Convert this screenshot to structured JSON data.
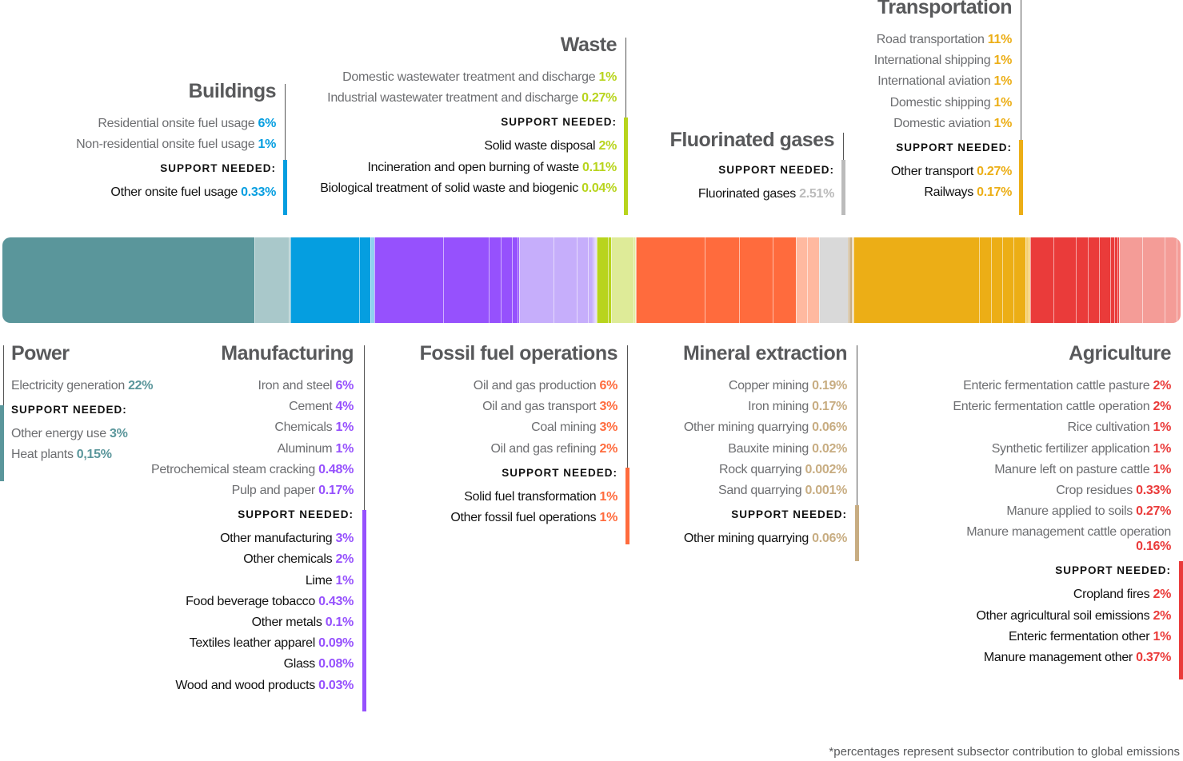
{
  "colors": {
    "power": "#5a969b",
    "power_light": "#a9c8ca",
    "buildings": "#059ee0",
    "manufacturing": "#9651fd",
    "manufacturing_light": "#c6aefb",
    "waste": "#b8d41d",
    "waste_light": "#deeb98",
    "fossil": "#ff6b3d",
    "fossil_light": "#ffb9a0",
    "fluorinated": "#bbbbbb",
    "fluorinated_light": "#d9d9d9",
    "mineral": "#c8ad82",
    "transport": "#ecae16",
    "agriculture": "#ea3b3a",
    "agriculture_light": "#f49c97"
  },
  "support_label": "SUPPORT NEEDED:",
  "footnote": "*percentages represent subsector contribution to global emissions",
  "chart_data": {
    "type": "stacked-bar",
    "title": "",
    "sectors": [
      {
        "name": "Buildings",
        "color": "#059ee0",
        "items": [
          {
            "name": "Residential onsite fuel usage",
            "value": "6%"
          },
          {
            "name": "Non-residential onsite fuel usage",
            "value": "1%"
          }
        ],
        "support": [
          {
            "name": "Other onsite fuel usage",
            "value": "0.33%"
          }
        ]
      },
      {
        "name": "Waste",
        "color": "#b8d41d",
        "items": [
          {
            "name": "Domestic wastewater treatment and discharge",
            "value": "1%"
          },
          {
            "name": "Industrial wastewater treatment and discharge",
            "value": "0.27%"
          }
        ],
        "support": [
          {
            "name": "Solid waste disposal",
            "value": "2%"
          },
          {
            "name": "Incineration and open burning of waste",
            "value": "0.11%"
          },
          {
            "name": "Biological treatment of solid waste and biogenic",
            "value": "0.04%"
          }
        ]
      },
      {
        "name": "Fluorinated gases",
        "color": "#bbbbbb",
        "items": [],
        "support": [
          {
            "name": "Fluorinated gases",
            "value": "2.51%"
          }
        ]
      },
      {
        "name": "Transportation",
        "color": "#ecae16",
        "items": [
          {
            "name": "Road transportation",
            "value": "11%"
          },
          {
            "name": "International shipping",
            "value": "1%"
          },
          {
            "name": "International aviation",
            "value": "1%"
          },
          {
            "name": "Domestic shipping",
            "value": "1%"
          },
          {
            "name": "Domestic aviation",
            "value": "1%"
          }
        ],
        "support": [
          {
            "name": "Other transport",
            "value": "0.27%"
          },
          {
            "name": "Railways",
            "value": "0.17%"
          }
        ]
      },
      {
        "name": "Power",
        "color": "#5a969b",
        "items": [
          {
            "name": "Electricity generation",
            "value": "22%"
          }
        ],
        "support": [
          {
            "name": "Other energy use",
            "value": "3%"
          },
          {
            "name": "Heat plants",
            "value": "0,15%"
          }
        ]
      },
      {
        "name": "Manufacturing",
        "color": "#9651fd",
        "items": [
          {
            "name": "Iron and steel",
            "value": "6%"
          },
          {
            "name": "Cement",
            "value": "4%"
          },
          {
            "name": "Chemicals",
            "value": "1%"
          },
          {
            "name": "Aluminum",
            "value": "1%"
          },
          {
            "name": "Petrochemical steam cracking",
            "value": "0.48%"
          },
          {
            "name": "Pulp and paper",
            "value": "0.17%"
          }
        ],
        "support": [
          {
            "name": "Other manufacturing",
            "value": "3%"
          },
          {
            "name": "Other chemicals",
            "value": "2%"
          },
          {
            "name": "Lime",
            "value": "1%"
          },
          {
            "name": "Food beverage tobacco",
            "value": "0.43%"
          },
          {
            "name": "Other metals",
            "value": "0.1%"
          },
          {
            "name": "Textiles leather apparel",
            "value": "0.09%"
          },
          {
            "name": "Glass",
            "value": "0.08%"
          },
          {
            "name": "Wood and wood products",
            "value": "0.03%"
          }
        ]
      },
      {
        "name": "Fossil fuel operations",
        "color": "#ff6b3d",
        "items": [
          {
            "name": "Oil and gas production",
            "value": "6%"
          },
          {
            "name": "Oil and gas transport",
            "value": "3%"
          },
          {
            "name": "Coal mining",
            "value": "3%"
          },
          {
            "name": "Oil and gas refining",
            "value": "2%"
          }
        ],
        "support": [
          {
            "name": "Solid fuel transformation",
            "value": "1%"
          },
          {
            "name": "Other fossil fuel operations",
            "value": "1%"
          }
        ]
      },
      {
        "name": "Mineral extraction",
        "color": "#c8ad82",
        "items": [
          {
            "name": "Copper mining",
            "value": "0.19%"
          },
          {
            "name": "Iron mining",
            "value": "0.17%"
          },
          {
            "name": "Other mining quarrying",
            "value": "0.06%"
          },
          {
            "name": "Bauxite mining",
            "value": "0.02%"
          },
          {
            "name": "Rock quarrying",
            "value": "0.002%"
          },
          {
            "name": "Sand quarrying",
            "value": "0.001%"
          }
        ],
        "support": [
          {
            "name": "Other mining quarrying",
            "value": "0.06%"
          }
        ]
      },
      {
        "name": "Agriculture",
        "color": "#ea3b3a",
        "items": [
          {
            "name": "Enteric fermentation cattle pasture",
            "value": "2%"
          },
          {
            "name": "Enteric fermentation cattle operation",
            "value": "2%"
          },
          {
            "name": "Rice cultivation",
            "value": "1%"
          },
          {
            "name": "Synthetic fertilizer application",
            "value": "1%"
          },
          {
            "name": "Manure left on pasture cattle",
            "value": "1%"
          },
          {
            "name": "Crop residues",
            "value": "0.33%"
          },
          {
            "name": "Manure applied to soils",
            "value": "0.27%"
          },
          {
            "name": "Manure management cattle operation",
            "value": "0.16%"
          }
        ],
        "support": [
          {
            "name": "Cropland fires",
            "value": "2%"
          },
          {
            "name": "Other agricultural soil emissions",
            "value": "2%"
          },
          {
            "name": "Enteric fermentation other",
            "value": "1%"
          },
          {
            "name": "Manure management other",
            "value": "0.37%"
          }
        ]
      }
    ],
    "bar_segments": [
      {
        "sector": "Power",
        "value": 22,
        "color": "#5a969b"
      },
      {
        "sector": "Power",
        "value": 3,
        "color": "#a9c8ca"
      },
      {
        "sector": "Power",
        "value": 0.15,
        "color": "#a9c8ca"
      },
      {
        "sector": "Buildings",
        "value": 6,
        "color": "#059ee0"
      },
      {
        "sector": "Buildings",
        "value": 1,
        "color": "#059ee0"
      },
      {
        "sector": "Buildings",
        "value": 0.33,
        "color": "#8fd0f0"
      },
      {
        "sector": "Manufacturing",
        "value": 6,
        "color": "#9651fd"
      },
      {
        "sector": "Manufacturing",
        "value": 4,
        "color": "#9651fd"
      },
      {
        "sector": "Manufacturing",
        "value": 1,
        "color": "#9651fd"
      },
      {
        "sector": "Manufacturing",
        "value": 1,
        "color": "#9651fd"
      },
      {
        "sector": "Manufacturing",
        "value": 0.48,
        "color": "#9651fd"
      },
      {
        "sector": "Manufacturing",
        "value": 0.17,
        "color": "#9651fd"
      },
      {
        "sector": "Manufacturing",
        "value": 3,
        "color": "#c6aefb"
      },
      {
        "sector": "Manufacturing",
        "value": 2,
        "color": "#c6aefb"
      },
      {
        "sector": "Manufacturing",
        "value": 1,
        "color": "#c6aefb"
      },
      {
        "sector": "Manufacturing",
        "value": 0.43,
        "color": "#c6aefb"
      },
      {
        "sector": "Manufacturing",
        "value": 0.1,
        "color": "#c6aefb"
      },
      {
        "sector": "Manufacturing",
        "value": 0.09,
        "color": "#c6aefb"
      },
      {
        "sector": "Manufacturing",
        "value": 0.08,
        "color": "#c6aefb"
      },
      {
        "sector": "Manufacturing",
        "value": 0.03,
        "color": "#c6aefb"
      },
      {
        "sector": "Waste",
        "value": 1,
        "color": "#b8d41d"
      },
      {
        "sector": "Waste",
        "value": 0.27,
        "color": "#b8d41d"
      },
      {
        "sector": "Waste",
        "value": 2,
        "color": "#deeb98"
      },
      {
        "sector": "Waste",
        "value": 0.11,
        "color": "#deeb98"
      },
      {
        "sector": "Waste",
        "value": 0.04,
        "color": "#deeb98"
      },
      {
        "sector": "Fossil fuel operations",
        "value": 6,
        "color": "#ff6b3d"
      },
      {
        "sector": "Fossil fuel operations",
        "value": 3,
        "color": "#ff6b3d"
      },
      {
        "sector": "Fossil fuel operations",
        "value": 3,
        "color": "#ff6b3d"
      },
      {
        "sector": "Fossil fuel operations",
        "value": 2,
        "color": "#ff6b3d"
      },
      {
        "sector": "Fossil fuel operations",
        "value": 1,
        "color": "#ffb9a0"
      },
      {
        "sector": "Fossil fuel operations",
        "value": 1,
        "color": "#ffb9a0"
      },
      {
        "sector": "Fluorinated gases",
        "value": 2.51,
        "color": "#d9d9d9"
      },
      {
        "sector": "Mineral extraction",
        "value": 0.19,
        "color": "#c8ad82"
      },
      {
        "sector": "Mineral extraction",
        "value": 0.17,
        "color": "#c8ad82"
      },
      {
        "sector": "Mineral extraction",
        "value": 0.06,
        "color": "#c8ad82"
      },
      {
        "sector": "Mineral extraction",
        "value": 0.02,
        "color": "#c8ad82"
      },
      {
        "sector": "Mineral extraction",
        "value": 0.06,
        "color": "#e3d3b8"
      },
      {
        "sector": "Transportation",
        "value": 11,
        "color": "#ecae16"
      },
      {
        "sector": "Transportation",
        "value": 1,
        "color": "#ecae16"
      },
      {
        "sector": "Transportation",
        "value": 1,
        "color": "#ecae16"
      },
      {
        "sector": "Transportation",
        "value": 1,
        "color": "#ecae16"
      },
      {
        "sector": "Transportation",
        "value": 1,
        "color": "#ecae16"
      },
      {
        "sector": "Transportation",
        "value": 0.27,
        "color": "#f5cf6f"
      },
      {
        "sector": "Transportation",
        "value": 0.17,
        "color": "#f5cf6f"
      },
      {
        "sector": "Agriculture",
        "value": 2,
        "color": "#ea3b3a"
      },
      {
        "sector": "Agriculture",
        "value": 2,
        "color": "#ea3b3a"
      },
      {
        "sector": "Agriculture",
        "value": 1,
        "color": "#ea3b3a"
      },
      {
        "sector": "Agriculture",
        "value": 1,
        "color": "#ea3b3a"
      },
      {
        "sector": "Agriculture",
        "value": 1,
        "color": "#ea3b3a"
      },
      {
        "sector": "Agriculture",
        "value": 0.33,
        "color": "#ea3b3a"
      },
      {
        "sector": "Agriculture",
        "value": 0.27,
        "color": "#ea3b3a"
      },
      {
        "sector": "Agriculture",
        "value": 0.16,
        "color": "#ea3b3a"
      },
      {
        "sector": "Agriculture",
        "value": 2,
        "color": "#f49c97"
      },
      {
        "sector": "Agriculture",
        "value": 2,
        "color": "#f49c97"
      },
      {
        "sector": "Agriculture",
        "value": 1,
        "color": "#f49c97"
      },
      {
        "sector": "Agriculture",
        "value": 0.37,
        "color": "#f49c97"
      }
    ]
  }
}
